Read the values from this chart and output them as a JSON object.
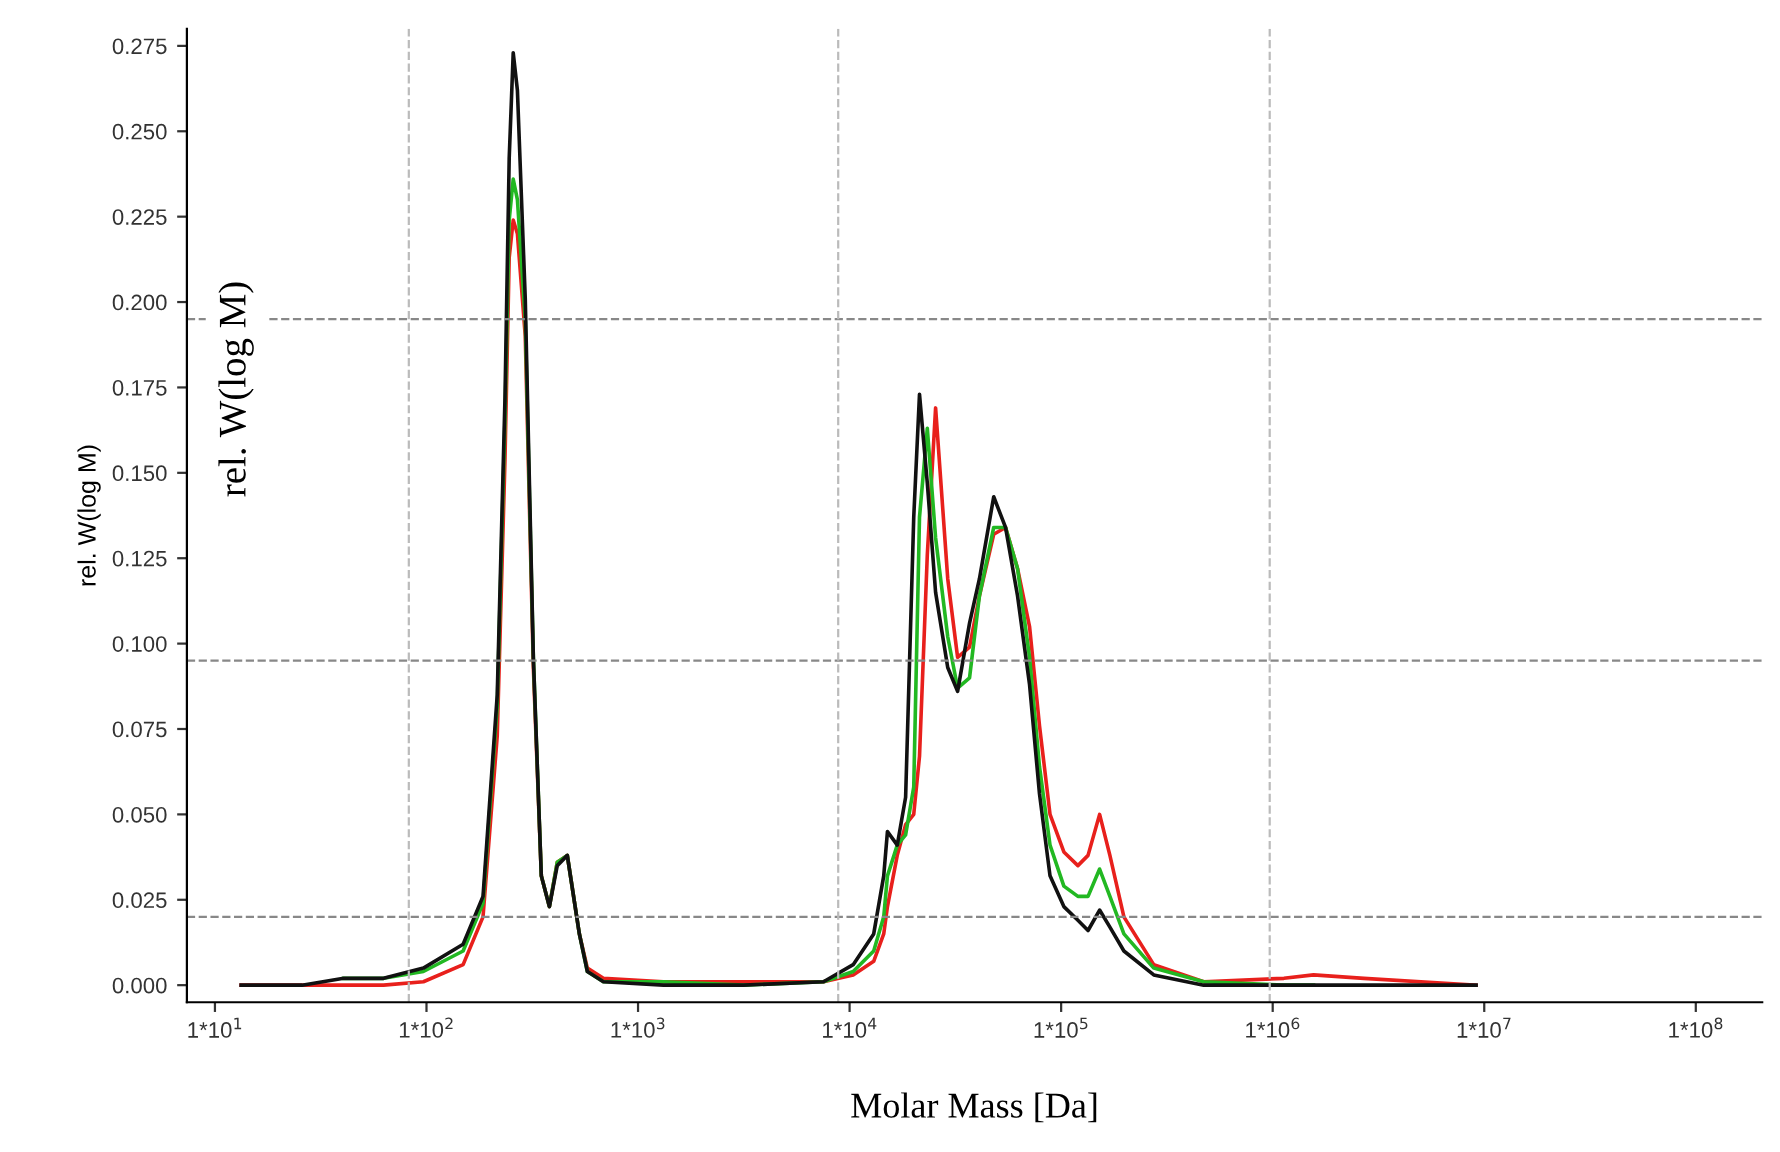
{
  "chart_data": {
    "type": "line",
    "xlabel": "Molar Mass [Da]",
    "ylabel": "rel. W(log M)",
    "annotations": [
      "rel. W(log M)"
    ],
    "log": "x",
    "grid": false,
    "legend": false,
    "marker": "none",
    "line_style": "solid",
    "xlim": [
      7.37,
      206000000
    ],
    "ylim": [
      -0.005,
      0.28
    ],
    "xticks": [
      {
        "value": 10,
        "label": "1*10$^{1}$"
      },
      {
        "value": 100,
        "label": "1*10$^{2}$"
      },
      {
        "value": 1000,
        "label": "1*10$^{3}$"
      },
      {
        "value": 10000,
        "label": "1*10$^{4}$"
      },
      {
        "value": 100000,
        "label": "1*10$^{5}$"
      },
      {
        "value": 1000000,
        "label": "1*10$^{6}$"
      },
      {
        "value": 10000000,
        "label": "1*10$^{7}$"
      },
      {
        "value": 100000000,
        "label": "1*10$^{8}$"
      }
    ],
    "yticks": [
      {
        "value": 0,
        "label": "0.000"
      },
      {
        "value": 0.025,
        "label": "0.025"
      },
      {
        "value": 0.05,
        "label": "0.050"
      },
      {
        "value": 0.075,
        "label": "0.075"
      },
      {
        "value": 0.1,
        "label": "0.100"
      },
      {
        "value": 0.125,
        "label": "0.125"
      },
      {
        "value": 0.15,
        "label": "0.150"
      },
      {
        "value": 0.175,
        "label": "0.175"
      },
      {
        "value": 0.2,
        "label": "0.200"
      },
      {
        "value": 0.225,
        "label": "0.225"
      },
      {
        "value": 0.25,
        "label": "0.250"
      },
      {
        "value": 0.275,
        "label": "0.275"
      }
    ],
    "ref_lines": [
      {
        "axis": "y",
        "value": 0.02,
        "color": "#888888",
        "line_style": "dashed"
      },
      {
        "axis": "y",
        "value": 0.095,
        "color": "#888888",
        "line_style": "dashed"
      },
      {
        "axis": "y",
        "value": 0.195,
        "color": "#888888",
        "line_style": "dashed"
      },
      {
        "axis": "x",
        "value": 82.5,
        "color": "#bbbbbb",
        "line_style": "dashed"
      },
      {
        "axis": "x",
        "value": 8834,
        "color": "#bbbbbb",
        "line_style": "dashed"
      },
      {
        "axis": "x",
        "value": 968000,
        "color": "#bbbbbb",
        "line_style": "dashed"
      }
    ],
    "x": [
      13.3,
      25.8,
      40.6,
      62.7,
      96.7,
      149,
      185,
      216,
      235,
      246,
      257,
      269,
      293,
      320,
      349,
      381,
      415,
      463,
      528,
      576,
      686,
      1320,
      3150,
      7530,
      10400,
      13000,
      14500,
      15100,
      16800,
      18400,
      20100,
      21400,
      23300,
      25500,
      29100,
      32400,
      36900,
      41100,
      48000,
      54600,
      62200,
      70900,
      79000,
      88600,
      103000,
      120000,
      134000,
      152000,
      170000,
      198000,
      274000,
      472000,
      1130000,
      1560000,
      2700000,
      9150000
    ],
    "series": [
      {
        "color": "#e8201c",
        "values": [
          0,
          0,
          0,
          0,
          0.001,
          0.006,
          0.02,
          0.073,
          0.154,
          0.213,
          0.224,
          0.22,
          0.19,
          0.093,
          0.032,
          0.023,
          0.036,
          0.038,
          0.015,
          0.005,
          0.002,
          0.001,
          0.001,
          0.001,
          0.003,
          0.007,
          0.015,
          0.023,
          0.038,
          0.047,
          0.05,
          0.067,
          0.126,
          0.169,
          0.119,
          0.096,
          0.099,
          0.114,
          0.132,
          0.134,
          0.122,
          0.105,
          0.076,
          0.05,
          0.039,
          0.035,
          0.038,
          0.05,
          0.038,
          0.02,
          0.006,
          0.001,
          0.002,
          0.003,
          0.002,
          0
        ]
      },
      {
        "color": "#22b822",
        "values": [
          null,
          null,
          0.002,
          0.002,
          0.004,
          0.01,
          0.024,
          0.082,
          0.166,
          0.224,
          0.236,
          0.23,
          0.195,
          0.096,
          0.032,
          0.023,
          0.036,
          0.038,
          0.015,
          0.004,
          0.001,
          0.001,
          0,
          0.001,
          0.004,
          0.01,
          0.02,
          0.032,
          0.041,
          0.044,
          0.058,
          0.137,
          0.163,
          0.131,
          0.102,
          0.087,
          0.09,
          0.114,
          0.134,
          0.134,
          0.122,
          0.096,
          0.064,
          0.041,
          0.029,
          0.026,
          0.026,
          0.034,
          0.026,
          0.015,
          0.005,
          0.001,
          0,
          0,
          null,
          null
        ]
      },
      {
        "color": "#111111",
        "values": [
          0,
          0,
          0.002,
          0.002,
          0.005,
          0.012,
          0.026,
          0.085,
          0.172,
          0.242,
          0.273,
          0.262,
          0.201,
          0.096,
          0.032,
          0.023,
          0.035,
          0.038,
          0.015,
          0.004,
          0.001,
          0,
          0,
          0.001,
          0.006,
          0.015,
          0.032,
          0.045,
          0.041,
          0.055,
          0.137,
          0.173,
          0.147,
          0.115,
          0.093,
          0.086,
          0.106,
          0.119,
          0.143,
          0.134,
          0.114,
          0.088,
          0.056,
          0.032,
          0.023,
          0.019,
          0.016,
          0.022,
          0.017,
          0.01,
          0.003,
          0,
          0,
          0,
          0,
          0
        ]
      }
    ]
  }
}
